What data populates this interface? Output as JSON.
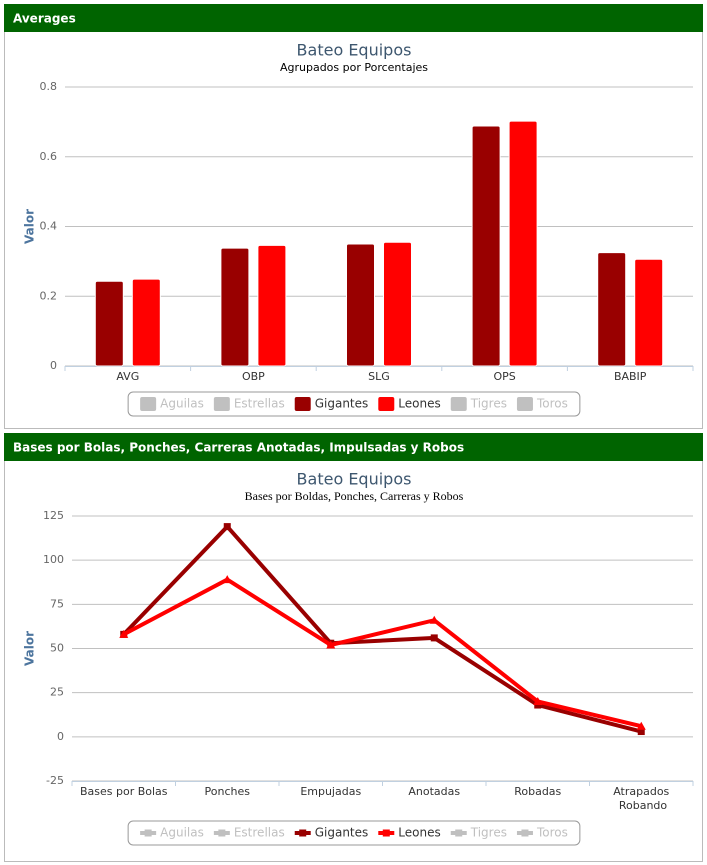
{
  "chart_data": [
    {
      "type": "bar",
      "header": "Averages",
      "title": "Bateo Equipos",
      "subtitle": "Agrupados por Porcentajes",
      "y_label": "Valor",
      "categories": [
        "AVG",
        "OBP",
        "SLG",
        "OPS",
        "BABIP"
      ],
      "series": [
        {
          "name": "Aguilas",
          "color": "#c0c0c0",
          "visible": false,
          "values": [
            null,
            null,
            null,
            null,
            null
          ]
        },
        {
          "name": "Estrellas",
          "color": "#c0c0c0",
          "visible": false,
          "values": [
            null,
            null,
            null,
            null,
            null
          ]
        },
        {
          "name": "Gigantes",
          "color": "#990000",
          "visible": true,
          "values": [
            0.243,
            0.338,
            0.35,
            0.688,
            0.325
          ]
        },
        {
          "name": "Leones",
          "color": "#ff0000",
          "visible": true,
          "values": [
            0.249,
            0.346,
            0.355,
            0.702,
            0.306
          ]
        },
        {
          "name": "Tigres",
          "color": "#c0c0c0",
          "visible": false,
          "values": [
            null,
            null,
            null,
            null,
            null
          ]
        },
        {
          "name": "Toros",
          "color": "#c0c0c0",
          "visible": false,
          "values": [
            null,
            null,
            null,
            null,
            null
          ]
        }
      ],
      "ylim": [
        0,
        0.8
      ],
      "yticks": [
        0,
        0.2,
        0.4,
        0.6,
        0.8
      ],
      "grid": true
    },
    {
      "type": "line",
      "header": "Bases por Bolas, Ponches, Carreras Anotadas, Impulsadas y Robos",
      "title": "Bateo Equipos",
      "subtitle": "Bases por Boldas, Ponches, Carreras y Robos",
      "y_label": "Valor",
      "categories": [
        "Bases por Bolas",
        "Ponches",
        "Empujadas",
        "Anotadas",
        "Robadas",
        "Atrapados Robando"
      ],
      "series": [
        {
          "name": "Aguilas",
          "color": "#c0c0c0",
          "visible": false,
          "values": [
            null,
            null,
            null,
            null,
            null,
            null
          ]
        },
        {
          "name": "Estrellas",
          "color": "#c0c0c0",
          "visible": false,
          "values": [
            null,
            null,
            null,
            null,
            null,
            null
          ]
        },
        {
          "name": "Gigantes",
          "color": "#990000",
          "visible": true,
          "marker": "square",
          "values": [
            58,
            119,
            53,
            56,
            18,
            3
          ]
        },
        {
          "name": "Leones",
          "color": "#ff0000",
          "visible": true,
          "marker": "triangle",
          "values": [
            58,
            89,
            52,
            66,
            20,
            6
          ]
        },
        {
          "name": "Tigres",
          "color": "#c0c0c0",
          "visible": false,
          "values": [
            null,
            null,
            null,
            null,
            null,
            null
          ]
        },
        {
          "name": "Toros",
          "color": "#c0c0c0",
          "visible": false,
          "values": [
            null,
            null,
            null,
            null,
            null,
            null
          ]
        }
      ],
      "ylim": [
        -25,
        125
      ],
      "yticks": [
        -25,
        0,
        25,
        50,
        75,
        100,
        125
      ],
      "grid": true
    }
  ]
}
